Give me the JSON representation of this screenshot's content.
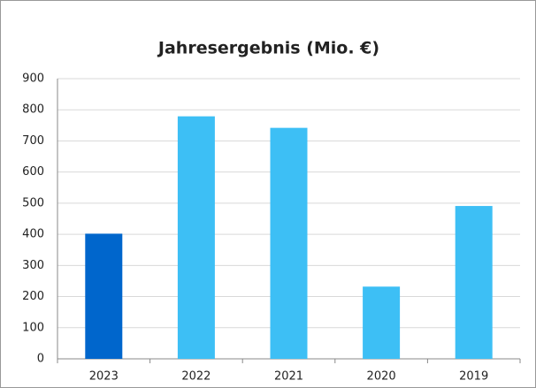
{
  "chart_data": {
    "type": "bar",
    "title": "Jahresergebnis (Mio. €)",
    "categories": [
      "2023",
      "2022",
      "2021",
      "2020",
      "2019"
    ],
    "values": [
      402,
      779,
      742,
      232,
      491
    ],
    "colors": [
      "#0066cc",
      "#3dbff5",
      "#3dbff5",
      "#3dbff5",
      "#3dbff5"
    ],
    "ylim": [
      0,
      900
    ],
    "yticks": [
      0,
      100,
      200,
      300,
      400,
      500,
      600,
      700,
      800,
      900
    ],
    "grid": true
  }
}
